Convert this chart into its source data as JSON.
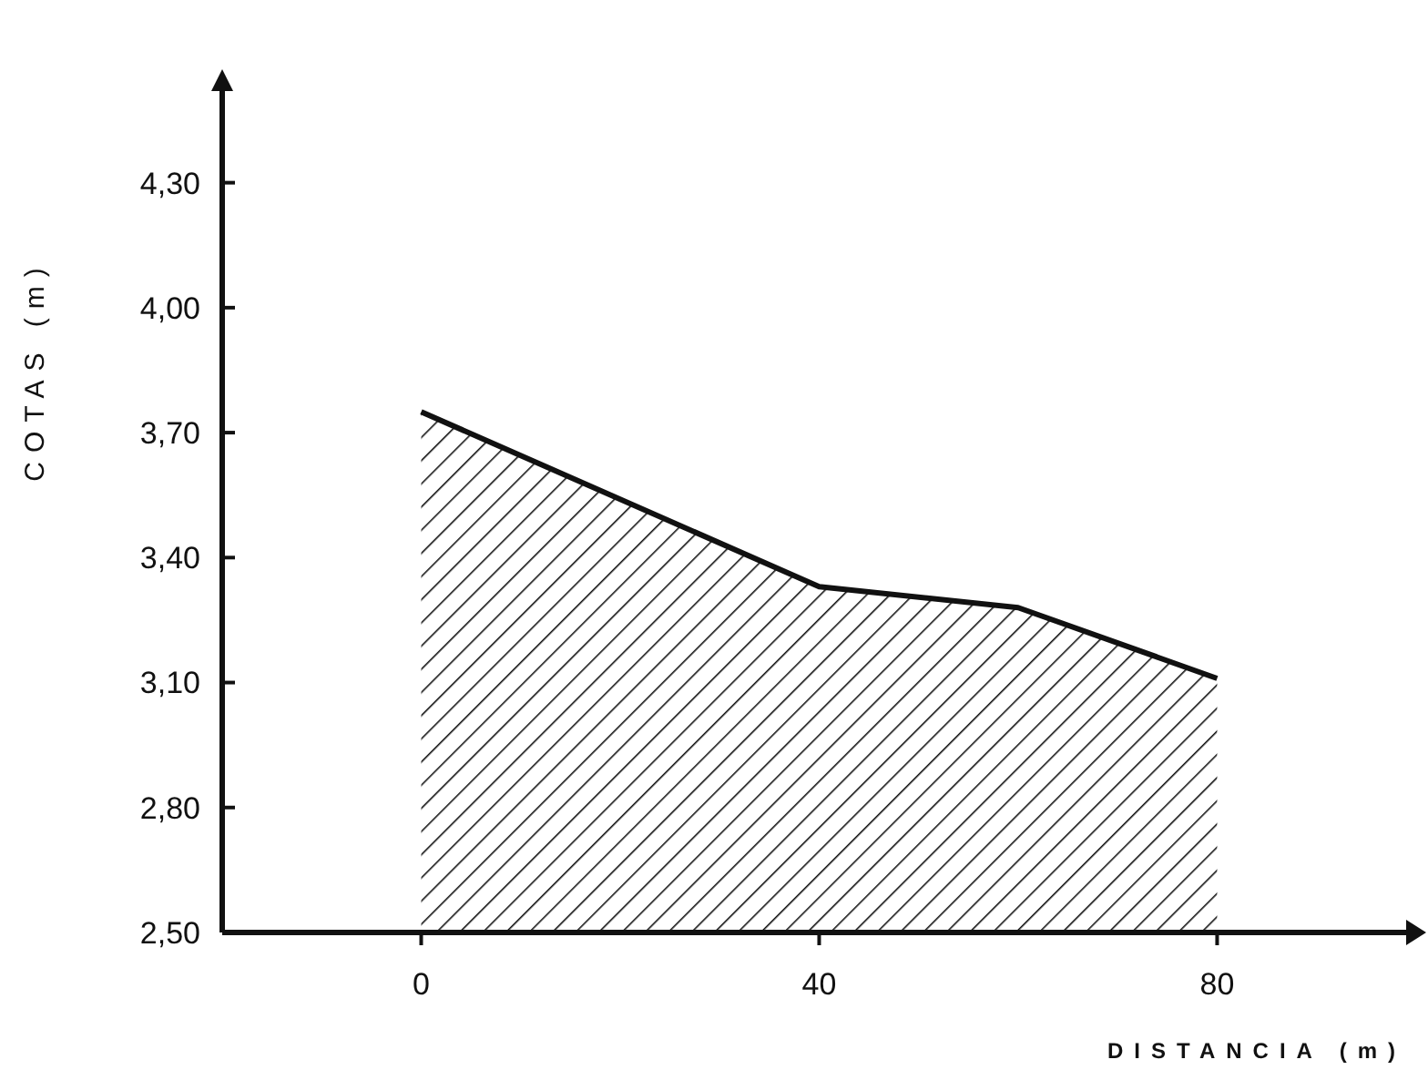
{
  "chart_data": {
    "type": "area",
    "xlabel": "DISTANCIA (m)",
    "ylabel": "COTAS (m)",
    "x": [
      0,
      40,
      60,
      80
    ],
    "values": [
      3.75,
      3.33,
      3.28,
      3.11
    ],
    "color": "#111111",
    "xlim": [
      -20,
      99
    ],
    "ylim": [
      2.5,
      4.52
    ],
    "xticks": [
      0,
      40,
      80
    ],
    "yticks": [
      {
        "value": 2.5,
        "label": "2,50"
      },
      {
        "value": 2.8,
        "label": "2,80"
      },
      {
        "value": 3.1,
        "label": "3,10"
      },
      {
        "value": 3.4,
        "label": "3,40"
      },
      {
        "value": 3.7,
        "label": "3,70"
      },
      {
        "value": 4.0,
        "label": "4,00"
      },
      {
        "value": 4.3,
        "label": "4,30"
      }
    ],
    "grid": false
  }
}
